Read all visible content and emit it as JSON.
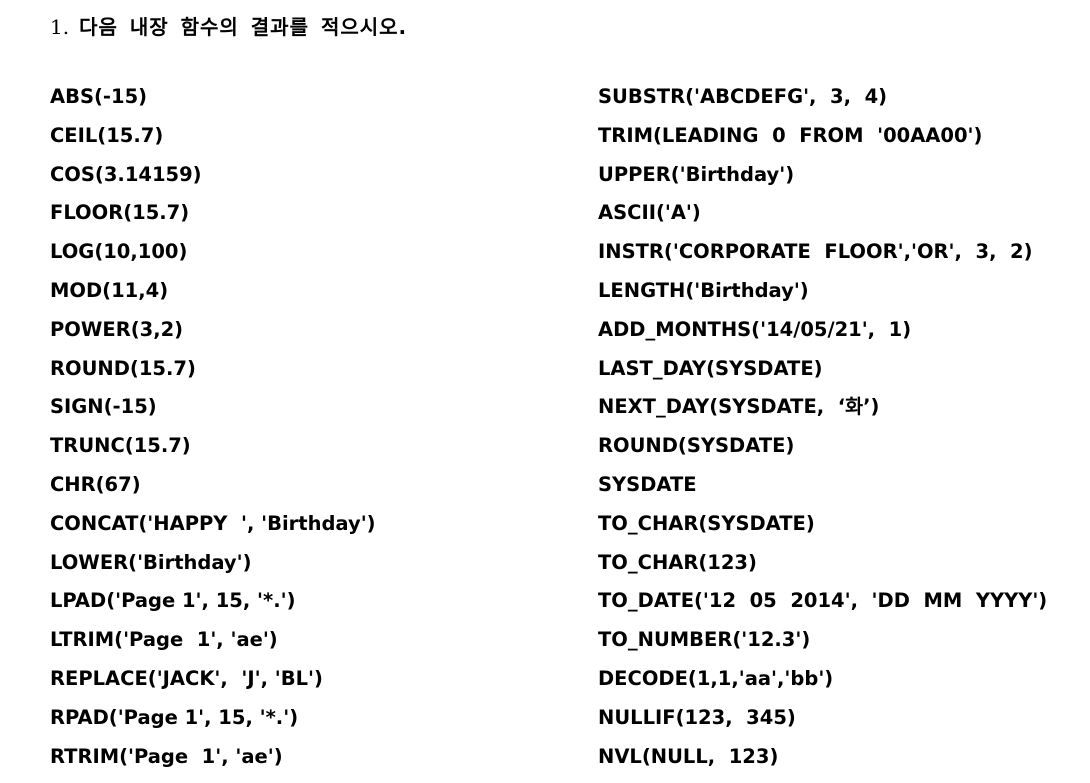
{
  "question": {
    "number": "1.",
    "text": "다음 내장 함수의 결과를 적으시오."
  },
  "left_column": [
    "ABS(-15)",
    "CEIL(15.7)",
    "COS(3.14159)",
    "FLOOR(15.7)",
    "LOG(10,100)",
    "MOD(11,4)",
    "POWER(3,2)",
    "ROUND(15.7)",
    "SIGN(-15)",
    "TRUNC(15.7)",
    "CHR(67)",
    "CONCAT('HAPPY  ', 'Birthday')",
    "LOWER('Birthday')",
    "LPAD('Page 1', 15, '*.')",
    "LTRIM('Page  1', 'ae')",
    "REPLACE('JACK',  'J', 'BL')",
    "RPAD('Page 1', 15, '*.')",
    "RTRIM('Page  1', 'ae')"
  ],
  "right_column": [
    "SUBSTR('ABCDEFG',  3,  4)",
    "TRIM(LEADING  0  FROM  '00AA00')",
    "UPPER('Birthday')",
    "ASCII('A')",
    "INSTR('CORPORATE  FLOOR','OR',  3,  2)",
    "LENGTH('Birthday')",
    "ADD_MONTHS('14/05/21',  1)",
    "LAST_DAY(SYSDATE)",
    "NEXT_DAY(SYSDATE,  ‘화’)",
    "ROUND(SYSDATE)",
    "SYSDATE",
    "TO_CHAR(SYSDATE)",
    "TO_CHAR(123)",
    "TO_DATE('12  05  2014',  'DD  MM  YYYY')",
    "TO_NUMBER('12.3')",
    "DECODE(1,1,'aa','bb')",
    "NULLIF(123,  345)",
    "NVL(NULL,  123)"
  ]
}
